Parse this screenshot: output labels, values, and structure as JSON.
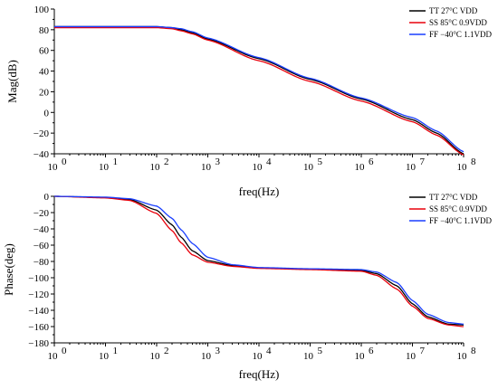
{
  "chart_data": [
    {
      "type": "line",
      "xscale": "log",
      "xlim": [
        1,
        100000000
      ],
      "ylim": [
        -40,
        100
      ],
      "grid": false,
      "legend_position": "top-right",
      "xlabel": "freq(Hz)",
      "ylabel": "Mag(dB)",
      "x_tick_labels": [
        "10",
        "10",
        "10",
        "10",
        "10",
        "10",
        "10",
        "10",
        "10"
      ],
      "x_tick_exponents": [
        "0",
        "1",
        "2",
        "3",
        "4",
        "5",
        "6",
        "7",
        "8"
      ],
      "y_tick_labels": [
        "100",
        "80",
        "60",
        "40",
        "20",
        "0",
        "−20",
        "−40"
      ],
      "x": [
        1,
        10,
        100,
        200,
        300,
        500,
        1000,
        10000,
        100000,
        1000000,
        10000000,
        30000000,
        100000000
      ],
      "series": [
        {
          "name": "TT 27°C VDD",
          "color": "#000000",
          "values": [
            83,
            83,
            83,
            82,
            80,
            77,
            71,
            52,
            32,
            13,
            -7,
            -20,
            -40
          ]
        },
        {
          "name": "SS 85°C 0.9VDD",
          "color": "#e8000b",
          "values": [
            82,
            82,
            82,
            81,
            79,
            76,
            70,
            50,
            30,
            11,
            -9,
            -22,
            -41
          ]
        },
        {
          "name": "FF −40°C 1.1VDD",
          "color": "#1a3fff",
          "values": [
            83,
            83,
            83,
            82,
            81,
            78,
            72,
            53,
            33,
            14,
            -5,
            -18,
            -38
          ]
        }
      ]
    },
    {
      "type": "line",
      "xscale": "log",
      "xlim": [
        1,
        100000000
      ],
      "ylim": [
        -180,
        0
      ],
      "grid": false,
      "legend_position": "top-right",
      "xlabel": "freq(Hz)",
      "ylabel": "Phase(deg)",
      "x_tick_labels": [
        "10",
        "10",
        "10",
        "10",
        "10",
        "10",
        "10",
        "10",
        "10"
      ],
      "x_tick_exponents": [
        "0",
        "1",
        "2",
        "3",
        "4",
        "5",
        "6",
        "7",
        "8"
      ],
      "y_tick_labels": [
        "0",
        "−20",
        "−40",
        "−60",
        "−80",
        "−100",
        "−120",
        "−140",
        "−160",
        "−180"
      ],
      "x": [
        1,
        10,
        30,
        100,
        200,
        300,
        500,
        1000,
        3000,
        10000,
        100000,
        1000000,
        2000000,
        5000000,
        10000000,
        20000000,
        50000000,
        100000000
      ],
      "series": [
        {
          "name": "TT 27°C VDD",
          "color": "#000000",
          "values": [
            0,
            -1.5,
            -4,
            -17,
            -35,
            -50,
            -67,
            -79,
            -85,
            -88,
            -89.5,
            -91,
            -95,
            -110,
            -132,
            -148,
            -157,
            -158
          ]
        },
        {
          "name": "SS 85°C 0.9VDD",
          "color": "#e8000b",
          "values": [
            0,
            -2,
            -5,
            -21,
            -42,
            -57,
            -72,
            -81,
            -86,
            -88.5,
            -90,
            -92,
            -97,
            -114,
            -135,
            -150,
            -158,
            -160
          ]
        },
        {
          "name": "FF −40°C 1.1VDD",
          "color": "#1a3fff",
          "values": [
            0,
            -1,
            -3,
            -12,
            -27,
            -41,
            -58,
            -75,
            -84,
            -87.5,
            -89,
            -90,
            -93,
            -106,
            -128,
            -145,
            -155,
            -157
          ]
        }
      ]
    }
  ]
}
